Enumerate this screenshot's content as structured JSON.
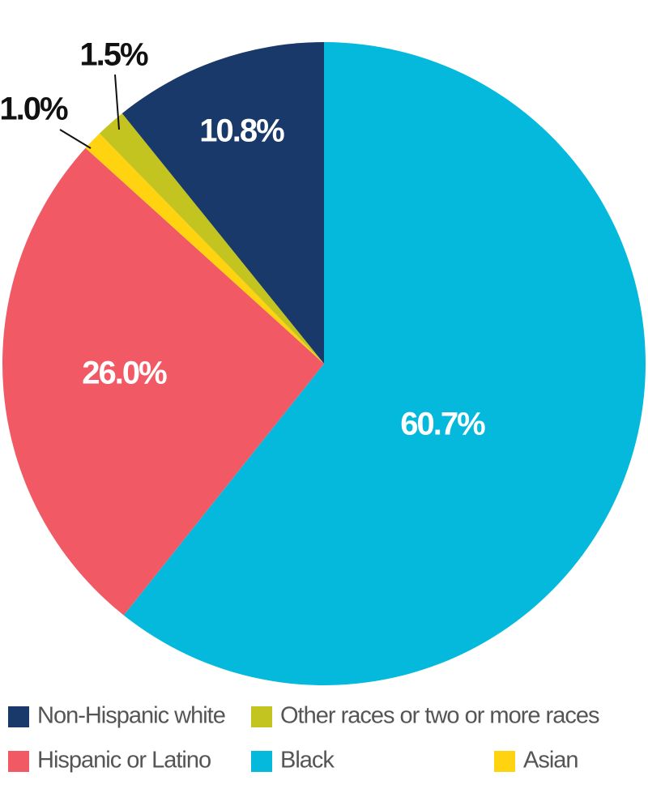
{
  "chart_data": {
    "type": "pie",
    "categories": [
      "Black",
      "Hispanic or Latino",
      "Asian",
      "Other races or two or more races",
      "Non-Hispanic white"
    ],
    "values": [
      60.7,
      26.0,
      1.0,
      1.5,
      10.8
    ],
    "value_labels": [
      "60.7%",
      "26.0%",
      "1.0%",
      "1.5%",
      "10.8%"
    ],
    "colors": [
      "#05b9dd",
      "#f15a64",
      "#ffd310",
      "#c3c41f",
      "#18396a"
    ]
  }
}
